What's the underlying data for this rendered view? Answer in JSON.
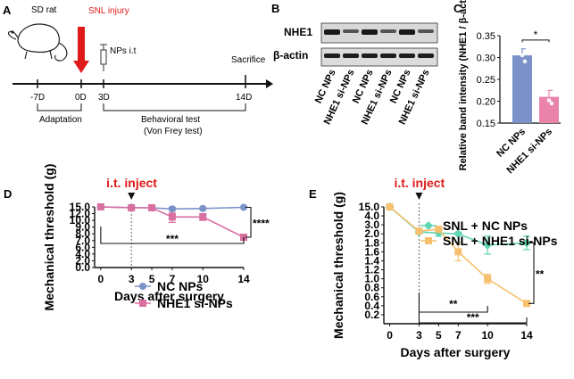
{
  "panel_labels": {
    "a": "A",
    "b": "B",
    "c": "C",
    "d": "D",
    "e": "E"
  },
  "panel_a": {
    "animal": "SD rat",
    "injury": "SNL injury",
    "treatment": "NPs i.t",
    "endpoint": "Sacrifice",
    "timepoints": [
      "-7D",
      "0D",
      "3D",
      "14D"
    ],
    "adaptation": "Adaptation",
    "behavioral_test": "Behavioral test",
    "behavioral_test_sub": "(Von Frey test)"
  },
  "panel_b": {
    "rows": [
      "NHE1",
      "β-actin"
    ],
    "lanes": [
      "NC NPs",
      "NHE1 si-NPs",
      "NC NPs",
      "NHE1 si-NPs",
      "NC NPs",
      "NHE1 si-NPs"
    ]
  },
  "chart_data": [
    {
      "id": "C",
      "type": "bar",
      "ylabel": "Relative band intensity (NHE1 / β-actin)",
      "categories": [
        "NC NPs",
        "NHE1 si-NPs"
      ],
      "values": [
        0.305,
        0.21
      ],
      "errors": [
        0.015,
        0.015
      ],
      "points": [
        [
          0.322,
          0.305,
          0.291
        ],
        [
          0.228,
          0.202,
          0.195
        ]
      ],
      "colors": [
        "#7b92c9",
        "#e983a9"
      ],
      "ylim": [
        0.15,
        0.35
      ],
      "yticks": [
        0.15,
        0.2,
        0.25,
        0.3,
        0.35
      ],
      "ytick_labels": [
        "0.15",
        "0.20",
        "0.25",
        "0.30",
        "0.35"
      ],
      "significance": "*"
    },
    {
      "id": "D",
      "type": "line",
      "xlabel": "Days after surgery",
      "ylabel": "Mechanical threshold (g)",
      "x": [
        0,
        3,
        5,
        7,
        10,
        14
      ],
      "xticks": [
        "0",
        "3",
        "5",
        "7",
        "10",
        "14"
      ],
      "yticks": [
        "15.0",
        "12.0",
        "10.0",
        "9.0",
        "8.0",
        "7.0",
        "6.0",
        "4.0",
        "2.0",
        "0.0"
      ],
      "annotation": "i.t. inject",
      "series": [
        {
          "name": "NC NPs",
          "color": "#7b92c9",
          "values": [
            15.0,
            14.7,
            14.6,
            14.1,
            14.3,
            14.8
          ],
          "errors": [
            0.2,
            0.3,
            0.3,
            0.8,
            0.4,
            0.2
          ]
        },
        {
          "name": "NHE1 si-NPs",
          "color": "#d96ea0",
          "values": [
            15.0,
            14.6,
            14.6,
            11.0,
            11.0,
            7.5
          ],
          "errors": [
            0.2,
            0.3,
            0.3,
            1.3,
            1.0,
            0.3
          ]
        }
      ],
      "sig_bracket": "***",
      "sig_end": "****"
    },
    {
      "id": "E",
      "type": "line",
      "xlabel": "Days after surgery",
      "ylabel": "Mechanical threshold (g)",
      "x": [
        0,
        3,
        5,
        7,
        10,
        14
      ],
      "xticks": [
        "0",
        "3",
        "5",
        "7",
        "10",
        "14"
      ],
      "yticks": [
        "15.0",
        "4.0",
        "3.0",
        "2.0",
        "1.8",
        "1.6",
        "1.4",
        "1.2",
        "1.0",
        "0.8",
        "0.6",
        "0.4",
        "0.2"
      ],
      "annotation": "i.t. inject",
      "series": [
        {
          "name": "SNL + NC NPs",
          "color": "#5fd6b4",
          "values": [
            15.0,
            2.2,
            2.1,
            2.0,
            1.75,
            1.8
          ],
          "errors": [
            1.0,
            0.15,
            0.15,
            0.2,
            0.2,
            0.15
          ]
        },
        {
          "name": "SNL + NHE1 si-NPs",
          "color": "#f6c06f",
          "values": [
            15.0,
            2.3,
            2.5,
            1.6,
            1.0,
            0.45
          ],
          "errors": [
            1.0,
            0.15,
            0.2,
            0.2,
            0.1,
            0.05
          ]
        }
      ],
      "sig_bracket_1": "**",
      "sig_bracket_2": "***",
      "sig_end": "**"
    }
  ]
}
